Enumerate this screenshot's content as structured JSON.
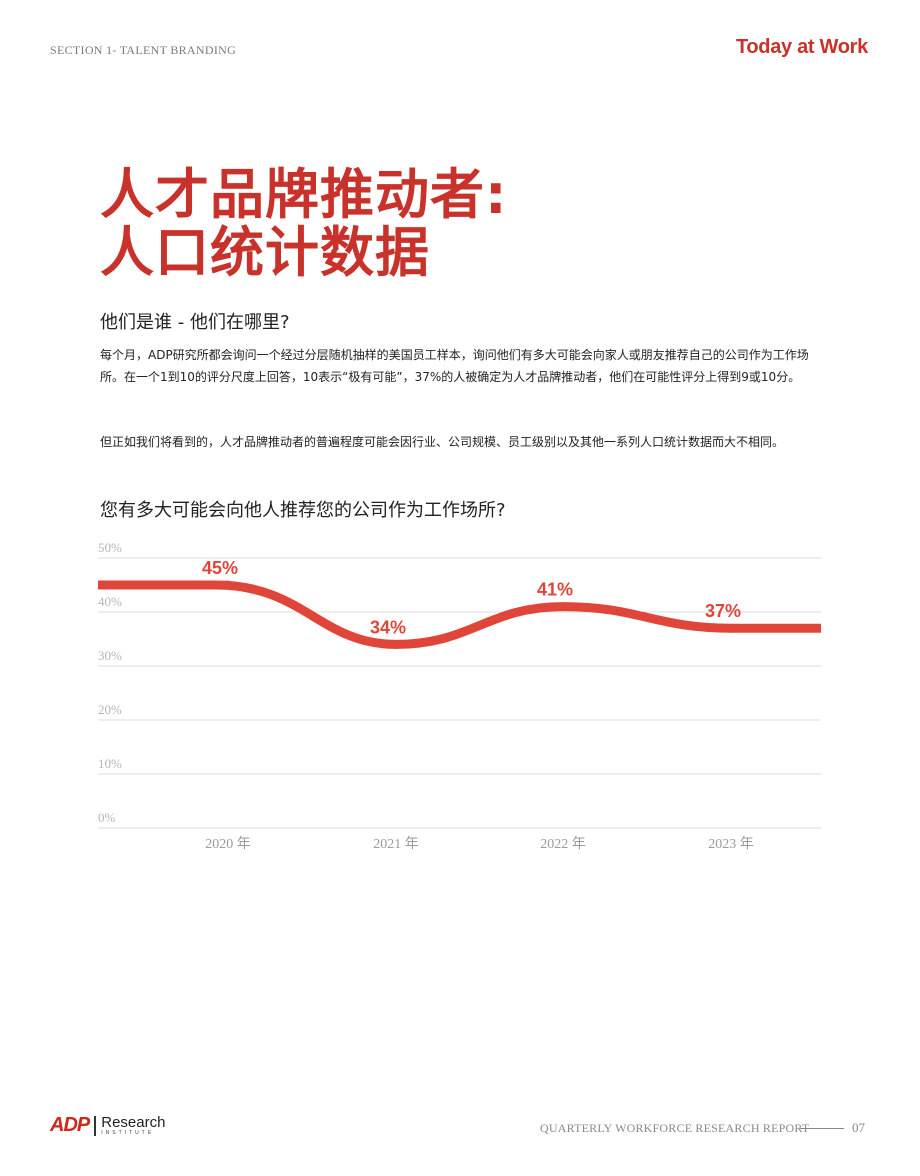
{
  "header": {
    "section": "SECTION 1- TALENT BRANDING",
    "brand": "Today at Work"
  },
  "title": {
    "line1": "人才品牌推动者:",
    "line2": "人口统计数据"
  },
  "subheading": "他们是谁 - 他们在哪里?",
  "paragraphs": [
    "每个月，ADP研究所都会询问一个经过分层随机抽样的美国员工样本，询问他们有多大可能会向家人或朋友推荐自己的公司作为工作场所。在一个1到10的评分尺度上回答，10表示“极有可能”，37%的人被确定为人才品牌推动者，他们在可能性评分上得到9或10分。",
    "但正如我们将看到的，人才品牌推动者的普遍程度可能会因行业、公司规模、员工级别以及其他一系列人口统计数据而大不相同。"
  ],
  "chart_title": "您有多大可能会向他人推荐您的公司作为工作场所?",
  "chart_data": {
    "type": "line",
    "x": [
      "2020 年",
      "2021 年",
      "2022 年",
      "2023 年"
    ],
    "values": [
      45,
      34,
      41,
      37
    ],
    "data_labels": [
      "45%",
      "34%",
      "41%",
      "37%"
    ],
    "y_ticks": [
      "0%",
      "10%",
      "20%",
      "30%",
      "40%",
      "50%"
    ],
    "ylim": [
      0,
      50
    ],
    "grid": true,
    "line_color": "#e0453a",
    "title": "您有多大可能会向他人推荐您的公司作为工作场所?"
  },
  "footer": {
    "logo_mark": "ADP",
    "logo_word": "Research",
    "logo_sub": "INSTITUTE",
    "report": "QUARTERLY WORKFORCE RESEARCH REPORT",
    "page": "07"
  },
  "colors": {
    "accent": "#c8322a",
    "line": "#e0453a",
    "grid": "#dddddd"
  }
}
